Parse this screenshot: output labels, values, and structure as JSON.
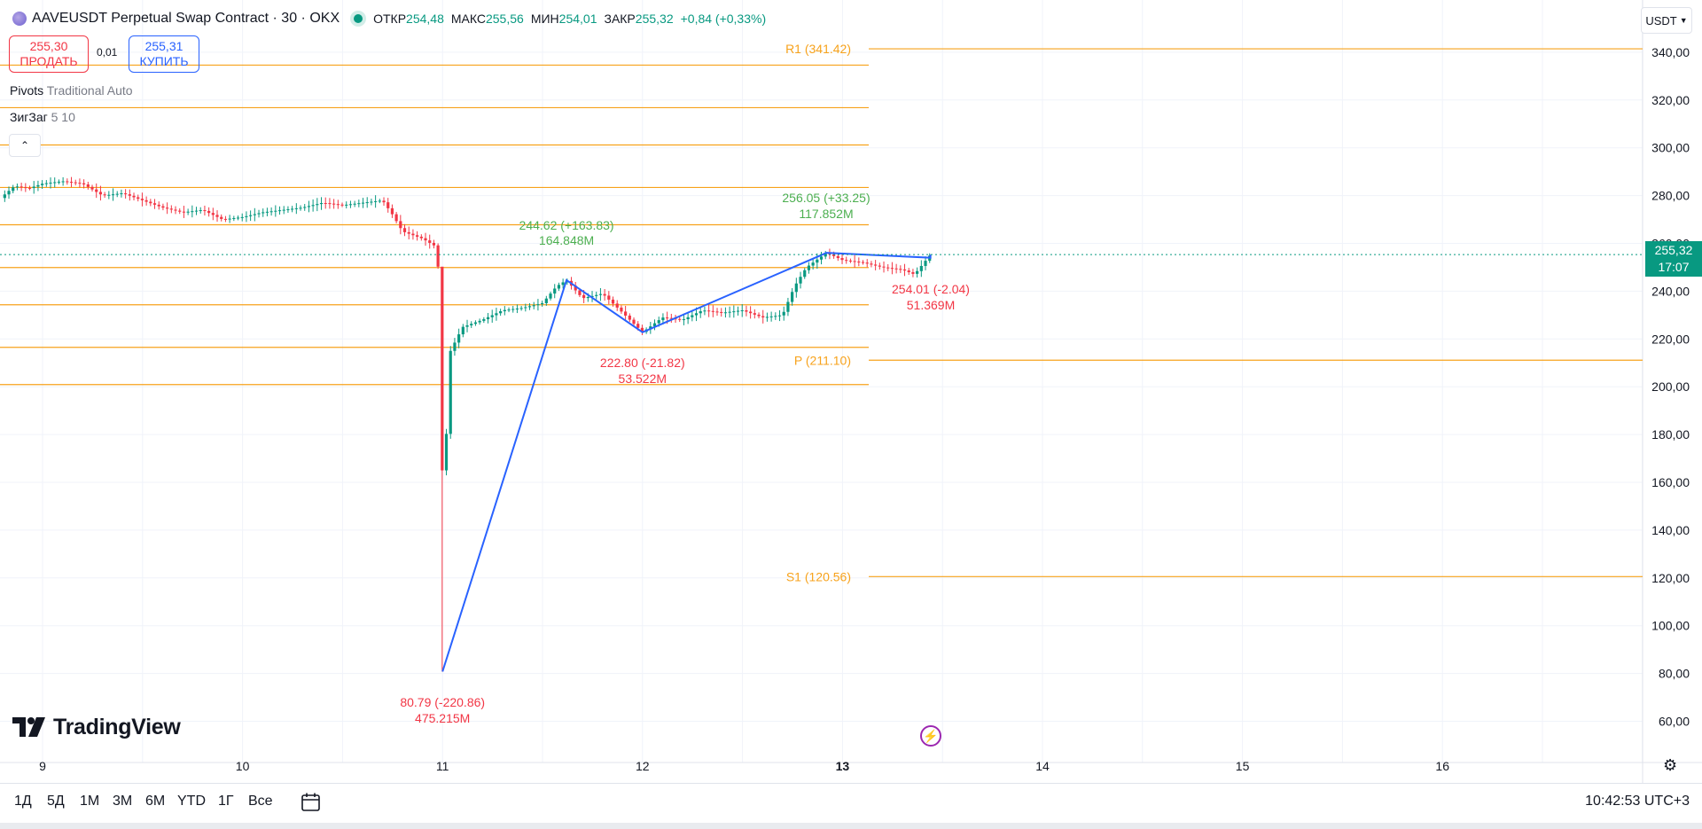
{
  "header": {
    "title": "AAVEUSDT Perpetual Swap Contract · 30 · OKX",
    "open_label": "ОТКР",
    "open": "254,48",
    "high_label": "МАКС",
    "high": "255,56",
    "low_label": "МИН",
    "low": "254,01",
    "close_label": "ЗАКР",
    "close": "255,32",
    "change": "+0,84 (+0,33%)"
  },
  "trade": {
    "sell_price": "255,30",
    "sell_label": "ПРОДАТЬ",
    "spread": "0,01",
    "buy_price": "255,31",
    "buy_label": "КУПИТЬ"
  },
  "indicators": {
    "pivots_name": "Pivots",
    "pivots_params": "Traditional Auto",
    "zigzag_name": "ЗигЗаг",
    "zigzag_params": "5 10"
  },
  "currency": "USDT",
  "current_price": {
    "price": "255,32",
    "countdown": "17:07"
  },
  "bottom_bar": {
    "ranges": [
      "1Д",
      "5Д",
      "1М",
      "3М",
      "6М",
      "YTD",
      "1Г",
      "Все"
    ],
    "clock": "10:42:53 UTC+3"
  },
  "brand": "TradingView",
  "colors": {
    "up": "#089981",
    "down": "#f23645",
    "pivot": "#f7a21b",
    "zigzag": "#2962ff",
    "label_up": "#4caf50",
    "label_down": "#f23645"
  },
  "chart_data": {
    "type": "candlestick",
    "ylim": [
      50,
      350
    ],
    "y_ticks": [
      60,
      80,
      100,
      120,
      140,
      160,
      180,
      200,
      220,
      240,
      260,
      280,
      300,
      320,
      340
    ],
    "y_tick_labels": [
      "60,00",
      "80,00",
      "100,00",
      "120,00",
      "140,00",
      "160,00",
      "180,00",
      "200,00",
      "220,00",
      "240,00",
      "260,00",
      "280,00",
      "300,00",
      "320,00",
      "340,00"
    ],
    "x_ticks": [
      9,
      10,
      11,
      12,
      13,
      14,
      15,
      16
    ],
    "x_tick_labels": [
      "9",
      "10",
      "11",
      "12",
      "13",
      "14",
      "15",
      "16"
    ],
    "xlim": [
      8.79,
      17.02
    ],
    "grid": true,
    "current_price": 255.32,
    "pivots_current": [
      {
        "name": "R1",
        "value": 341.42,
        "label": "R1 (341.42)"
      },
      {
        "name": "P",
        "value": 211.1,
        "label": "P (211.10)"
      },
      {
        "name": "S1",
        "value": 120.56,
        "label": "S1 (120.56)"
      }
    ],
    "pivots_previous": [
      334.6,
      316.8,
      301.2,
      283.4,
      267.8,
      249.9,
      234.3,
      216.5,
      200.9
    ],
    "zigzag": [
      {
        "x": 11.0,
        "y": 80.79,
        "label": "80.79 (-220.86)",
        "volume": "475.215M",
        "dir": "down"
      },
      {
        "x": 11.62,
        "y": 244.62,
        "label": "244.62 (+163.83)",
        "volume": "164.848M",
        "dir": "up"
      },
      {
        "x": 12.0,
        "y": 222.8,
        "label": "222.80 (-21.82)",
        "volume": "53.522M",
        "dir": "down"
      },
      {
        "x": 12.92,
        "y": 256.05,
        "label": "256.05 (+33.25)",
        "volume": "117.852M",
        "dir": "up"
      },
      {
        "x": 13.44,
        "y": 254.01,
        "label": "254.01 (-2.04)",
        "volume": "51.369M",
        "dir": "down"
      }
    ],
    "price_path": [
      [
        8.79,
        279
      ],
      [
        8.86,
        284
      ],
      [
        8.93,
        283
      ],
      [
        9.0,
        285
      ],
      [
        9.1,
        286
      ],
      [
        9.2,
        285
      ],
      [
        9.3,
        280
      ],
      [
        9.4,
        281
      ],
      [
        9.5,
        278
      ],
      [
        9.6,
        275
      ],
      [
        9.7,
        273
      ],
      [
        9.8,
        274
      ],
      [
        9.9,
        270
      ],
      [
        10.0,
        271
      ],
      [
        10.1,
        273
      ],
      [
        10.2,
        274
      ],
      [
        10.3,
        275
      ],
      [
        10.4,
        277
      ],
      [
        10.5,
        276
      ],
      [
        10.6,
        277
      ],
      [
        10.7,
        278
      ],
      [
        10.75,
        272
      ],
      [
        10.8,
        265
      ],
      [
        10.9,
        262
      ],
      [
        10.96,
        259
      ],
      [
        10.99,
        244
      ],
      [
        11.0,
        80.79
      ],
      [
        11.01,
        165
      ],
      [
        11.04,
        215
      ],
      [
        11.1,
        225
      ],
      [
        11.2,
        228
      ],
      [
        11.3,
        232
      ],
      [
        11.4,
        233
      ],
      [
        11.5,
        235
      ],
      [
        11.57,
        242
      ],
      [
        11.62,
        244.62
      ],
      [
        11.7,
        237
      ],
      [
        11.8,
        239
      ],
      [
        11.9,
        231
      ],
      [
        12.0,
        222.8
      ],
      [
        12.1,
        229
      ],
      [
        12.2,
        228
      ],
      [
        12.3,
        232
      ],
      [
        12.4,
        231
      ],
      [
        12.5,
        232
      ],
      [
        12.6,
        229
      ],
      [
        12.7,
        230
      ],
      [
        12.76,
        242
      ],
      [
        12.82,
        250
      ],
      [
        12.92,
        256.05
      ],
      [
        13.0,
        253
      ],
      [
        13.1,
        252
      ],
      [
        13.2,
        250
      ],
      [
        13.3,
        249
      ],
      [
        13.36,
        247
      ],
      [
        13.44,
        255.32
      ]
    ]
  }
}
